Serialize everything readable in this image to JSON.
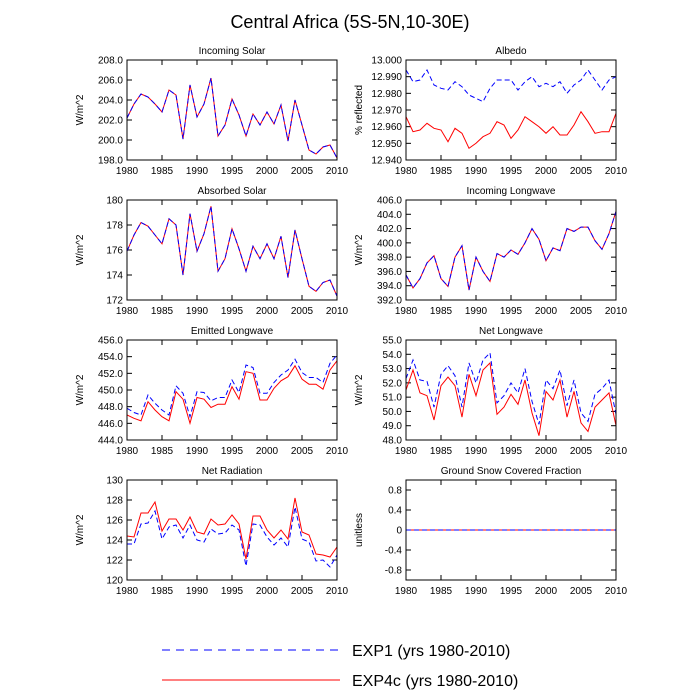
{
  "figure": {
    "title": "Central Africa (5S-5N,10-30E)",
    "legend": [
      {
        "label": "EXP1 (yrs 1980-2010)",
        "color": "#0000ff",
        "dash": "dashed"
      },
      {
        "label": "EXP4c (yrs 1980-2010)",
        "color": "#ff0000",
        "dash": "solid"
      }
    ]
  },
  "chart_data": [
    {
      "type": "line",
      "title": "Incoming Solar",
      "ylabel": "W/m^2",
      "ylim": [
        198,
        208
      ],
      "yticks": [
        198,
        200,
        202,
        204,
        206,
        208
      ],
      "ytick_labels": [
        "198.0",
        "200.0",
        "202.0",
        "204.0",
        "206.0",
        "208.0"
      ],
      "xlim": [
        1980,
        2010
      ],
      "xticks": [
        1980,
        1985,
        1990,
        1995,
        2000,
        2005,
        2010
      ],
      "x": [
        1980,
        1981,
        1982,
        1983,
        1984,
        1985,
        1986,
        1987,
        1988,
        1989,
        1990,
        1991,
        1992,
        1993,
        1994,
        1995,
        1996,
        1997,
        1998,
        1999,
        2000,
        2001,
        2002,
        2003,
        2004,
        2005,
        2006,
        2007,
        2008,
        2009,
        2010
      ],
      "series": [
        {
          "name": "EXP1 (yrs 1980-2010)",
          "values": [
            202.2,
            203.6,
            204.6,
            204.3,
            203.6,
            202.8,
            205.0,
            204.5,
            200.1,
            205.5,
            202.3,
            203.6,
            206.2,
            200.4,
            201.5,
            204.1,
            202.5,
            200.4,
            202.6,
            201.5,
            202.8,
            201.6,
            203.5,
            199.9,
            204.0,
            201.5,
            199.0,
            198.6,
            199.3,
            199.5,
            198.2
          ]
        },
        {
          "name": "EXP4c (yrs 1980-2010)",
          "values": [
            202.2,
            203.6,
            204.6,
            204.3,
            203.6,
            202.8,
            205.0,
            204.5,
            200.1,
            205.5,
            202.3,
            203.6,
            206.2,
            200.4,
            201.5,
            204.1,
            202.5,
            200.4,
            202.6,
            201.5,
            202.8,
            201.6,
            203.5,
            199.9,
            204.0,
            201.5,
            199.0,
            198.6,
            199.3,
            199.5,
            198.2
          ]
        }
      ]
    },
    {
      "type": "line",
      "title": "Albedo",
      "ylabel": "% reflected",
      "ylim": [
        12.94,
        13.0
      ],
      "yticks": [
        12.94,
        12.95,
        12.96,
        12.97,
        12.98,
        12.99,
        13.0
      ],
      "ytick_labels": [
        "12.940",
        "12.950",
        "12.960",
        "12.970",
        "12.980",
        "12.990",
        "13.000"
      ],
      "xlim": [
        1980,
        2010
      ],
      "xticks": [
        1980,
        1985,
        1990,
        1995,
        2000,
        2005,
        2010
      ],
      "x": [
        1980,
        1981,
        1982,
        1983,
        1984,
        1985,
        1986,
        1987,
        1988,
        1989,
        1990,
        1991,
        1992,
        1993,
        1994,
        1995,
        1996,
        1997,
        1998,
        1999,
        2000,
        2001,
        2002,
        2003,
        2004,
        2005,
        2006,
        2007,
        2008,
        2009,
        2010
      ],
      "series": [
        {
          "name": "EXP1 (yrs 1980-2010)",
          "values": [
            12.994,
            12.987,
            12.988,
            12.994,
            12.985,
            12.983,
            12.982,
            12.987,
            12.984,
            12.979,
            12.977,
            12.975,
            12.983,
            12.988,
            12.988,
            12.988,
            12.982,
            12.987,
            12.99,
            12.984,
            12.986,
            12.984,
            12.987,
            12.98,
            12.985,
            12.988,
            12.994,
            12.988,
            12.982,
            12.988,
            12.99
          ]
        },
        {
          "name": "EXP4c (yrs 1980-2010)",
          "values": [
            12.966,
            12.957,
            12.958,
            12.962,
            12.959,
            12.958,
            12.951,
            12.959,
            12.956,
            12.947,
            12.95,
            12.954,
            12.956,
            12.963,
            12.961,
            12.953,
            12.958,
            12.966,
            12.963,
            12.96,
            12.956,
            12.96,
            12.955,
            12.955,
            12.961,
            12.969,
            12.963,
            12.956,
            12.957,
            12.957,
            12.968
          ]
        }
      ]
    },
    {
      "type": "line",
      "title": "Absorbed Solar",
      "ylabel": "W/m^2",
      "ylim": [
        172,
        180
      ],
      "yticks": [
        172,
        174,
        176,
        178,
        180
      ],
      "ytick_labels": [
        "172",
        "174",
        "176",
        "178",
        "180"
      ],
      "xlim": [
        1980,
        2010
      ],
      "xticks": [
        1980,
        1985,
        1990,
        1995,
        2000,
        2005,
        2010
      ],
      "x": [
        1980,
        1981,
        1982,
        1983,
        1984,
        1985,
        1986,
        1987,
        1988,
        1989,
        1990,
        1991,
        1992,
        1993,
        1994,
        1995,
        1996,
        1997,
        1998,
        1999,
        2000,
        2001,
        2002,
        2003,
        2004,
        2005,
        2006,
        2007,
        2008,
        2009,
        2010
      ],
      "series": [
        {
          "name": "EXP1 (yrs 1980-2010)",
          "values": [
            175.9,
            177.2,
            178.2,
            177.9,
            177.2,
            176.5,
            178.5,
            178.0,
            174.0,
            178.9,
            175.9,
            177.3,
            179.5,
            174.3,
            175.3,
            177.7,
            176.1,
            174.3,
            176.3,
            175.3,
            176.5,
            175.3,
            177.1,
            173.8,
            177.6,
            175.3,
            173.1,
            172.7,
            173.4,
            173.6,
            172.3
          ]
        },
        {
          "name": "EXP4c (yrs 1980-2010)",
          "values": [
            175.9,
            177.2,
            178.2,
            177.9,
            177.2,
            176.5,
            178.5,
            178.0,
            174.0,
            178.9,
            175.9,
            177.3,
            179.5,
            174.3,
            175.3,
            177.7,
            176.1,
            174.3,
            176.3,
            175.3,
            176.5,
            175.3,
            177.1,
            173.8,
            177.6,
            175.3,
            173.1,
            172.7,
            173.4,
            173.6,
            172.3
          ]
        }
      ]
    },
    {
      "type": "line",
      "title": "Incoming Longwave",
      "ylabel": "W/m^2",
      "ylim": [
        392,
        406
      ],
      "yticks": [
        392,
        394,
        396,
        398,
        400,
        402,
        404,
        406
      ],
      "ytick_labels": [
        "392.0",
        "394.0",
        "396.0",
        "398.0",
        "400.0",
        "402.0",
        "404.0",
        "406.0"
      ],
      "xlim": [
        1980,
        2010
      ],
      "xticks": [
        1980,
        1985,
        1990,
        1995,
        2000,
        2005,
        2010
      ],
      "x": [
        1980,
        1981,
        1982,
        1983,
        1984,
        1985,
        1986,
        1987,
        1988,
        1989,
        1990,
        1991,
        1992,
        1993,
        1994,
        1995,
        1996,
        1997,
        1998,
        1999,
        2000,
        2001,
        2002,
        2003,
        2004,
        2005,
        2006,
        2007,
        2008,
        2009,
        2010
      ],
      "series": [
        {
          "name": "EXP1 (yrs 1980-2010)",
          "values": [
            395.5,
            393.7,
            395.0,
            397.2,
            398.2,
            395.0,
            393.9,
            398.0,
            399.6,
            393.4,
            398.0,
            396.0,
            394.6,
            398.5,
            398.0,
            399.0,
            398.4,
            400.0,
            402.0,
            400.5,
            397.5,
            399.3,
            398.9,
            402.0,
            401.6,
            402.2,
            402.2,
            400.3,
            399.1,
            401.3,
            404.4
          ]
        },
        {
          "name": "EXP4c (yrs 1980-2010)",
          "values": [
            395.5,
            393.7,
            395.0,
            397.2,
            398.2,
            395.0,
            393.9,
            398.0,
            399.6,
            393.4,
            398.0,
            396.0,
            394.6,
            398.5,
            398.0,
            399.0,
            398.4,
            400.0,
            402.0,
            400.5,
            397.5,
            399.3,
            398.9,
            402.0,
            401.6,
            402.2,
            402.2,
            400.3,
            399.1,
            401.3,
            404.4
          ]
        }
      ]
    },
    {
      "type": "line",
      "title": "Emitted Longwave",
      "ylabel": "W/m^2",
      "ylim": [
        444,
        456
      ],
      "yticks": [
        444,
        446,
        448,
        450,
        452,
        454,
        456
      ],
      "ytick_labels": [
        "444.0",
        "446.0",
        "448.0",
        "450.0",
        "452.0",
        "454.0",
        "456.0"
      ],
      "xlim": [
        1980,
        2010
      ],
      "xticks": [
        1980,
        1985,
        1990,
        1995,
        2000,
        2005,
        2010
      ],
      "x": [
        1980,
        1981,
        1982,
        1983,
        1984,
        1985,
        1986,
        1987,
        1988,
        1989,
        1990,
        1991,
        1992,
        1993,
        1994,
        1995,
        1996,
        1997,
        1998,
        1999,
        2000,
        2001,
        2002,
        2003,
        2004,
        2005,
        2006,
        2007,
        2008,
        2009,
        2010
      ],
      "series": [
        {
          "name": "EXP1 (yrs 1980-2010)",
          "values": [
            447.8,
            447.3,
            447.0,
            449.4,
            448.4,
            447.6,
            447.0,
            450.5,
            449.6,
            446.8,
            449.8,
            449.7,
            448.7,
            449.1,
            449.1,
            451.2,
            449.7,
            453.0,
            452.7,
            449.6,
            449.6,
            450.9,
            451.8,
            452.4,
            453.7,
            452.1,
            451.5,
            451.5,
            450.9,
            453.2,
            454.2
          ]
        },
        {
          "name": "EXP4c (yrs 1980-2010)",
          "values": [
            447.0,
            446.6,
            446.3,
            448.6,
            447.6,
            446.8,
            446.3,
            449.8,
            448.9,
            446.0,
            449.1,
            448.9,
            447.9,
            448.3,
            448.3,
            450.4,
            448.9,
            452.2,
            452.0,
            448.8,
            448.8,
            450.2,
            451.1,
            451.6,
            452.9,
            451.3,
            450.7,
            450.7,
            450.1,
            452.4,
            453.5
          ]
        }
      ]
    },
    {
      "type": "line",
      "title": "Net Longwave",
      "ylabel": "W/m^2",
      "ylim": [
        48,
        55
      ],
      "yticks": [
        48,
        49,
        50,
        51,
        52,
        53,
        54,
        55
      ],
      "ytick_labels": [
        "48.0",
        "49.0",
        "50.0",
        "51.0",
        "52.0",
        "53.0",
        "54.0",
        "55.0"
      ],
      "xlim": [
        1980,
        2010
      ],
      "xticks": [
        1980,
        1985,
        1990,
        1995,
        2000,
        2005,
        2010
      ],
      "x": [
        1980,
        1981,
        1982,
        1983,
        1984,
        1985,
        1986,
        1987,
        1988,
        1989,
        1990,
        1991,
        1992,
        1993,
        1994,
        1995,
        1996,
        1997,
        1998,
        1999,
        2000,
        2001,
        2002,
        2003,
        2004,
        2005,
        2006,
        2007,
        2008,
        2009,
        2010
      ],
      "series": [
        {
          "name": "EXP1 (yrs 1980-2010)",
          "values": [
            52.3,
            53.6,
            52.2,
            52.1,
            50.3,
            52.6,
            53.2,
            52.5,
            50.3,
            53.4,
            52.0,
            53.6,
            54.1,
            50.6,
            51.1,
            52.0,
            51.3,
            53.0,
            50.7,
            49.1,
            52.2,
            51.6,
            52.9,
            50.4,
            52.2,
            49.9,
            49.3,
            51.2,
            51.6,
            52.2,
            49.8
          ]
        },
        {
          "name": "EXP4c (yrs 1980-2010)",
          "values": [
            51.5,
            52.9,
            51.3,
            51.1,
            49.4,
            51.8,
            52.4,
            51.8,
            49.6,
            52.6,
            51.1,
            52.9,
            53.4,
            49.8,
            50.3,
            51.2,
            50.5,
            52.2,
            49.9,
            48.3,
            51.4,
            50.8,
            52.2,
            49.6,
            51.4,
            49.2,
            48.6,
            50.3,
            50.8,
            51.3,
            49.0
          ]
        }
      ]
    },
    {
      "type": "line",
      "title": "Net Radiation",
      "ylabel": "W/m^2",
      "ylim": [
        120,
        130
      ],
      "yticks": [
        120,
        122,
        124,
        126,
        128,
        130
      ],
      "ytick_labels": [
        "120",
        "122",
        "124",
        "126",
        "128",
        "130"
      ],
      "xlim": [
        1980,
        2010
      ],
      "xticks": [
        1980,
        1985,
        1990,
        1995,
        2000,
        2005,
        2010
      ],
      "x": [
        1980,
        1981,
        1982,
        1983,
        1984,
        1985,
        1986,
        1987,
        1988,
        1989,
        1990,
        1991,
        1992,
        1993,
        1994,
        1995,
        1996,
        1997,
        1998,
        1999,
        2000,
        2001,
        2002,
        2003,
        2004,
        2005,
        2006,
        2007,
        2008,
        2009,
        2010
      ],
      "series": [
        {
          "name": "EXP1 (yrs 1980-2010)",
          "values": [
            123.6,
            123.6,
            125.6,
            125.7,
            126.9,
            124.1,
            125.3,
            125.5,
            124.2,
            125.5,
            124.0,
            123.8,
            125.1,
            124.6,
            124.7,
            125.5,
            125.0,
            121.4,
            125.6,
            125.5,
            124.3,
            123.5,
            124.2,
            123.3,
            127.3,
            124.1,
            123.8,
            121.9,
            122.0,
            121.3,
            122.5
          ]
        },
        {
          "name": "EXP4c (yrs 1980-2010)",
          "values": [
            124.4,
            124.3,
            126.7,
            126.7,
            127.8,
            124.9,
            126.1,
            126.1,
            125.0,
            126.3,
            124.8,
            124.6,
            126.1,
            125.5,
            125.6,
            126.5,
            125.6,
            122.1,
            126.4,
            126.4,
            125.0,
            124.2,
            125.0,
            124.1,
            128.2,
            124.8,
            124.5,
            122.6,
            122.5,
            122.3,
            123.3
          ]
        }
      ]
    },
    {
      "type": "line",
      "title": "Ground Snow Covered Fraction",
      "ylabel": "unitless",
      "ylim": [
        -1,
        1
      ],
      "yticks": [
        -0.8,
        -0.4,
        0,
        0.4,
        0.8
      ],
      "ytick_labels": [
        "-0.8",
        "-0.4",
        "0",
        "0.4",
        "0.8"
      ],
      "xlim": [
        1980,
        2010
      ],
      "xticks": [
        1980,
        1985,
        1990,
        1995,
        2000,
        2005,
        2010
      ],
      "x": [
        1980,
        1981,
        1982,
        1983,
        1984,
        1985,
        1986,
        1987,
        1988,
        1989,
        1990,
        1991,
        1992,
        1993,
        1994,
        1995,
        1996,
        1997,
        1998,
        1999,
        2000,
        2001,
        2002,
        2003,
        2004,
        2005,
        2006,
        2007,
        2008,
        2009,
        2010
      ],
      "series": [
        {
          "name": "EXP1 (yrs 1980-2010)",
          "values": [
            0,
            0,
            0,
            0,
            0,
            0,
            0,
            0,
            0,
            0,
            0,
            0,
            0,
            0,
            0,
            0,
            0,
            0,
            0,
            0,
            0,
            0,
            0,
            0,
            0,
            0,
            0,
            0,
            0,
            0,
            0
          ]
        },
        {
          "name": "EXP4c (yrs 1980-2010)",
          "values": [
            0,
            0,
            0,
            0,
            0,
            0,
            0,
            0,
            0,
            0,
            0,
            0,
            0,
            0,
            0,
            0,
            0,
            0,
            0,
            0,
            0,
            0,
            0,
            0,
            0,
            0,
            0,
            0,
            0,
            0,
            0
          ]
        }
      ]
    }
  ]
}
